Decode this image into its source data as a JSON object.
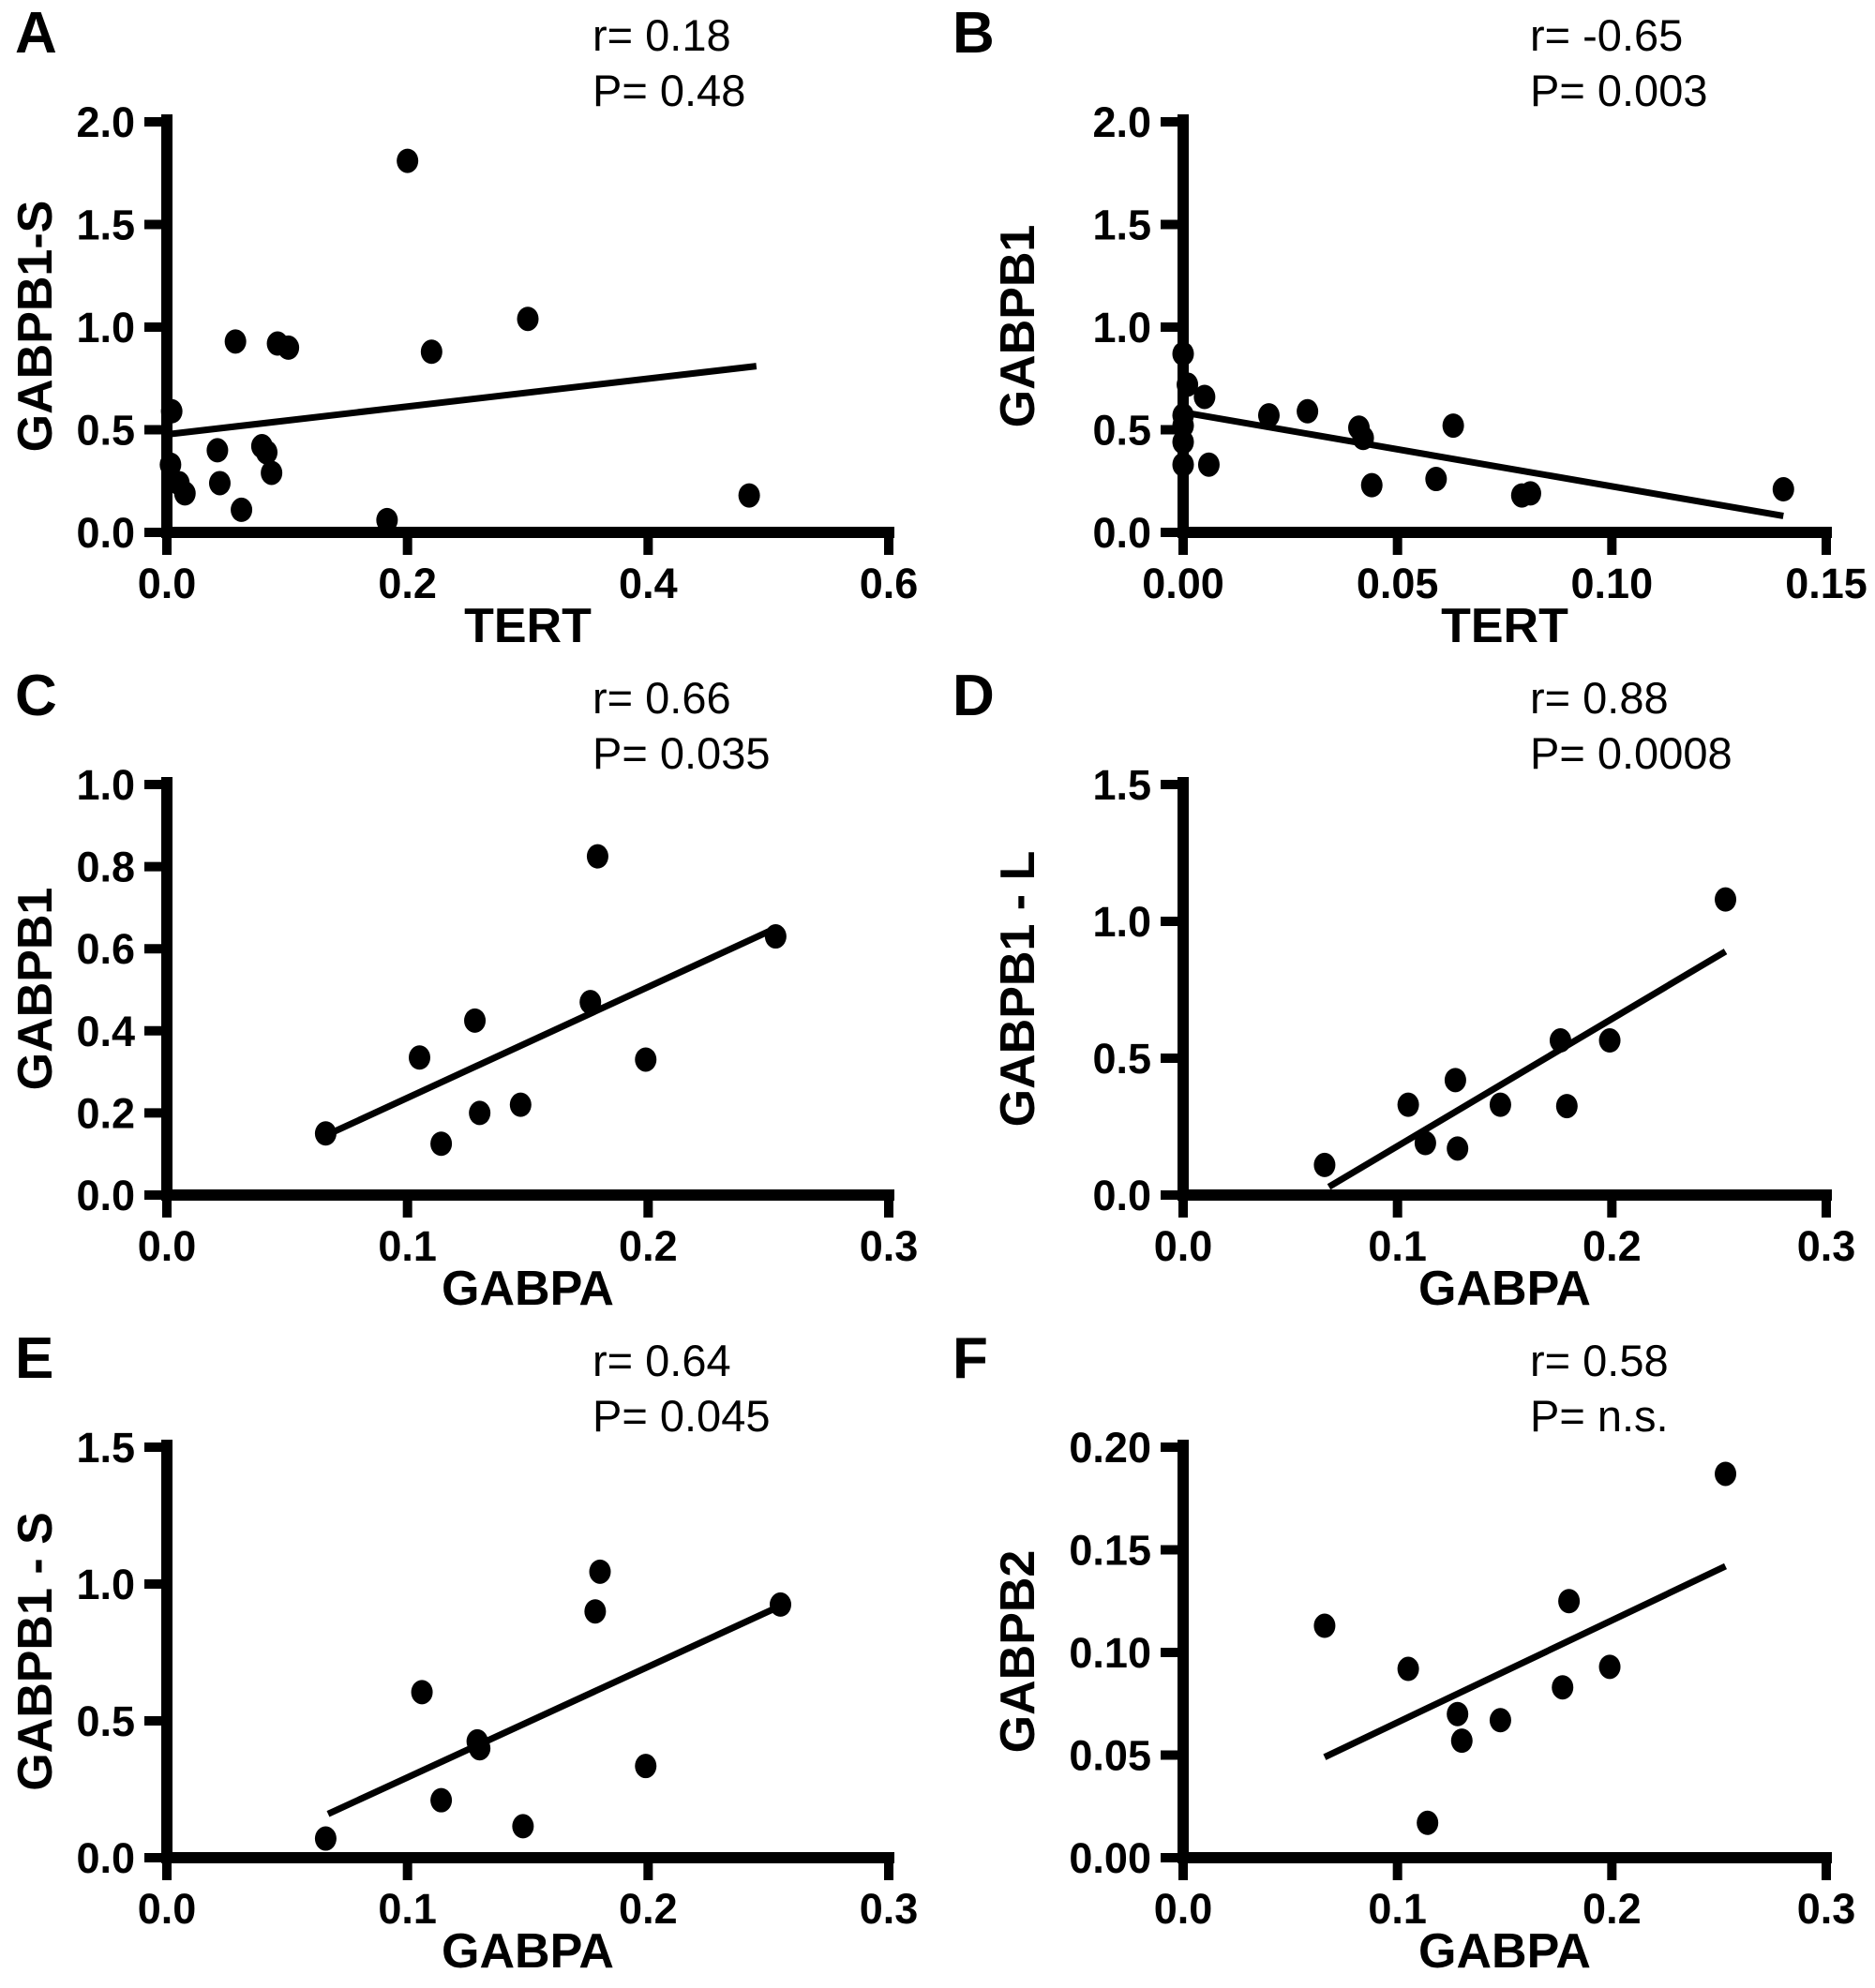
{
  "figure": {
    "background": "#ffffff",
    "ink_color": "#000000",
    "layout": "2x3-grid-scatter-panels"
  },
  "chart_data": [
    {
      "type": "scatter",
      "panel_letter": "A",
      "xlabel": "TERT",
      "ylabel": "GABPB1-S",
      "xlim": [
        0,
        0.6
      ],
      "ylim": [
        0,
        2.0
      ],
      "xticks": [
        "0.0",
        "0.2",
        "0.4",
        "0.6"
      ],
      "yticks": [
        "0.0",
        "0.5",
        "1.0",
        "1.5",
        "2.0"
      ],
      "annotation": {
        "r": "r= 0.18",
        "p": "P= 0.48"
      },
      "grid": false,
      "marker_color": "#000000",
      "points": [
        [
          0.2,
          1.81
        ],
        [
          0.3,
          1.04
        ],
        [
          0.057,
          0.93
        ],
        [
          0.092,
          0.92
        ],
        [
          0.101,
          0.9
        ],
        [
          0.22,
          0.88
        ],
        [
          0.004,
          0.59
        ],
        [
          0.042,
          0.4
        ],
        [
          0.079,
          0.42
        ],
        [
          0.083,
          0.39
        ],
        [
          0.003,
          0.33
        ],
        [
          0.087,
          0.29
        ],
        [
          0.01,
          0.24
        ],
        [
          0.044,
          0.24
        ],
        [
          0.015,
          0.19
        ],
        [
          0.484,
          0.18
        ],
        [
          0.062,
          0.11
        ],
        [
          0.183,
          0.06
        ]
      ],
      "trend_line": {
        "x": [
          0.004,
          0.49
        ],
        "y": [
          0.48,
          0.81
        ]
      }
    },
    {
      "type": "scatter",
      "panel_letter": "B",
      "xlabel": "TERT",
      "ylabel": "GABPB1",
      "xlim": [
        0,
        0.15
      ],
      "ylim": [
        0,
        2.0
      ],
      "xticks": [
        "0.00",
        "0.05",
        "0.10",
        "0.15"
      ],
      "yticks": [
        "0.0",
        "0.5",
        "1.0",
        "1.5",
        "2.0"
      ],
      "annotation": {
        "r": "r= -0.65",
        "p": "P= 0.003"
      },
      "grid": false,
      "marker_color": "#000000",
      "points": [
        [
          0.0,
          0.87
        ],
        [
          0.001,
          0.72
        ],
        [
          0.005,
          0.66
        ],
        [
          0.0,
          0.57
        ],
        [
          0.0,
          0.52
        ],
        [
          0.0,
          0.44
        ],
        [
          0.0,
          0.33
        ],
        [
          0.006,
          0.33
        ],
        [
          0.02,
          0.57
        ],
        [
          0.029,
          0.59
        ],
        [
          0.041,
          0.51
        ],
        [
          0.042,
          0.46
        ],
        [
          0.063,
          0.52
        ],
        [
          0.044,
          0.23
        ],
        [
          0.059,
          0.26
        ],
        [
          0.079,
          0.18
        ],
        [
          0.081,
          0.19
        ],
        [
          0.14,
          0.21
        ]
      ],
      "trend_line": {
        "x": [
          0.0,
          0.14
        ],
        "y": [
          0.585,
          0.08
        ]
      }
    },
    {
      "type": "scatter",
      "panel_letter": "C",
      "xlabel": "GABPA",
      "ylabel": "GABPB1",
      "xlim": [
        0,
        0.3
      ],
      "ylim": [
        0,
        1.0
      ],
      "xticks": [
        "0.0",
        "0.1",
        "0.2",
        "0.3"
      ],
      "yticks": [
        "0.0",
        "0.2",
        "0.4",
        "0.6",
        "0.8",
        "1.0"
      ],
      "annotation": {
        "r": "r= 0.66",
        "p": "P= 0.035"
      },
      "grid": false,
      "marker_color": "#000000",
      "points": [
        [
          0.066,
          0.15
        ],
        [
          0.105,
          0.335
        ],
        [
          0.114,
          0.125
        ],
        [
          0.128,
          0.425
        ],
        [
          0.13,
          0.2
        ],
        [
          0.147,
          0.22
        ],
        [
          0.176,
          0.47
        ],
        [
          0.179,
          0.825
        ],
        [
          0.199,
          0.33
        ],
        [
          0.253,
          0.63
        ]
      ],
      "trend_line": {
        "x": [
          0.066,
          0.253
        ],
        "y": [
          0.145,
          0.65
        ]
      }
    },
    {
      "type": "scatter",
      "panel_letter": "D",
      "xlabel": "GABPA",
      "ylabel": "GABPB1 - L",
      "xlim": [
        0,
        0.3
      ],
      "ylim": [
        0,
        1.5
      ],
      "xticks": [
        "0.0",
        "0.1",
        "0.2",
        "0.3"
      ],
      "yticks": [
        "0.0",
        "0.5",
        "1.0",
        "1.5"
      ],
      "annotation": {
        "r": "r= 0.88",
        "p": "P= 0.0008"
      },
      "grid": false,
      "marker_color": "#000000",
      "points": [
        [
          0.066,
          0.11
        ],
        [
          0.105,
          0.33
        ],
        [
          0.113,
          0.19
        ],
        [
          0.127,
          0.42
        ],
        [
          0.128,
          0.17
        ],
        [
          0.148,
          0.33
        ],
        [
          0.176,
          0.565
        ],
        [
          0.179,
          0.325
        ],
        [
          0.199,
          0.565
        ],
        [
          0.253,
          1.08
        ]
      ],
      "trend_line": {
        "x": [
          0.068,
          0.253
        ],
        "y": [
          0.03,
          0.89
        ]
      }
    },
    {
      "type": "scatter",
      "panel_letter": "E",
      "xlabel": "GABPA",
      "ylabel": "GABPB1 - S",
      "xlim": [
        0,
        0.3
      ],
      "ylim": [
        0,
        1.5
      ],
      "xticks": [
        "0.0",
        "0.1",
        "0.2",
        "0.3"
      ],
      "yticks": [
        "0.0",
        "0.5",
        "1.0",
        "1.5"
      ],
      "annotation": {
        "r": "r= 0.64",
        "p": "P= 0.045"
      },
      "grid": false,
      "marker_color": "#000000",
      "points": [
        [
          0.066,
          0.07
        ],
        [
          0.106,
          0.605
        ],
        [
          0.114,
          0.21
        ],
        [
          0.129,
          0.425
        ],
        [
          0.13,
          0.4
        ],
        [
          0.148,
          0.115
        ],
        [
          0.178,
          0.9
        ],
        [
          0.18,
          1.045
        ],
        [
          0.199,
          0.335
        ],
        [
          0.255,
          0.925
        ]
      ],
      "trend_line": {
        "x": [
          0.067,
          0.255
        ],
        "y": [
          0.16,
          0.92
        ]
      }
    },
    {
      "type": "scatter",
      "panel_letter": "F",
      "xlabel": "GABPA",
      "ylabel": "GABPB2",
      "xlim": [
        0,
        0.3
      ],
      "ylim": [
        0,
        0.2
      ],
      "xticks": [
        "0.0",
        "0.1",
        "0.2",
        "0.3"
      ],
      "yticks": [
        "0.00",
        "0.05",
        "0.10",
        "0.15",
        "0.20"
      ],
      "annotation": {
        "r": "r= 0.58",
        "p": "P= n.s."
      },
      "grid": false,
      "marker_color": "#000000",
      "points": [
        [
          0.066,
          0.113
        ],
        [
          0.105,
          0.092
        ],
        [
          0.114,
          0.017
        ],
        [
          0.128,
          0.07
        ],
        [
          0.13,
          0.057
        ],
        [
          0.148,
          0.067
        ],
        [
          0.177,
          0.083
        ],
        [
          0.18,
          0.125
        ],
        [
          0.199,
          0.093
        ],
        [
          0.253,
          0.187
        ]
      ],
      "trend_line": {
        "x": [
          0.066,
          0.253
        ],
        "y": [
          0.049,
          0.142
        ]
      }
    }
  ]
}
